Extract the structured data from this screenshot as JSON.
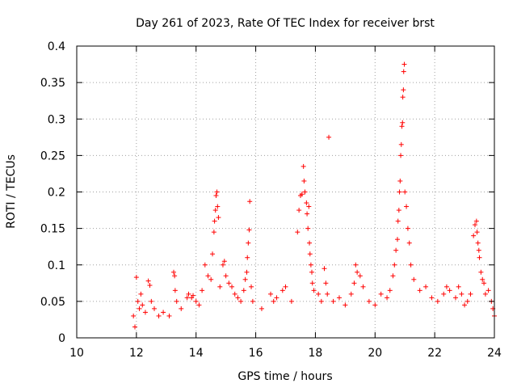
{
  "chart_data": {
    "type": "scatter",
    "title": "Day 261 of 2023, Rate Of TEC Index for receiver brst",
    "xlabel": "GPS time / hours",
    "ylabel": "ROTI / TECUs",
    "xlim": [
      10,
      24
    ],
    "ylim": [
      0,
      0.4
    ],
    "xticks": [
      10,
      12,
      14,
      16,
      18,
      20,
      22,
      24
    ],
    "xtick_labels": [
      "10",
      "12",
      "14",
      "16",
      "18",
      "20",
      "22",
      "24"
    ],
    "yticks": [
      0,
      0.05,
      0.1,
      0.15,
      0.2,
      0.25,
      0.3,
      0.35,
      0.4
    ],
    "ytick_labels": [
      "0",
      "0.05",
      "0.1",
      "0.15",
      "0.2",
      "0.25",
      "0.3",
      "0.35",
      "0.4"
    ],
    "grid": true,
    "marker": "+",
    "colors": {
      "points": "#ff0000",
      "grid": "#a0a0a0",
      "frame": "#000000"
    },
    "series": [
      {
        "points": [
          [
            11.9,
            0.03
          ],
          [
            11.95,
            0.015
          ],
          [
            12.0,
            0.083
          ],
          [
            12.05,
            0.05
          ],
          [
            12.1,
            0.04
          ],
          [
            12.15,
            0.06
          ],
          [
            12.2,
            0.045
          ],
          [
            12.3,
            0.035
          ],
          [
            12.4,
            0.078
          ],
          [
            12.45,
            0.072
          ],
          [
            12.5,
            0.05
          ],
          [
            12.6,
            0.04
          ],
          [
            12.75,
            0.03
          ],
          [
            12.9,
            0.035
          ],
          [
            13.1,
            0.03
          ],
          [
            13.25,
            0.09
          ],
          [
            13.28,
            0.085
          ],
          [
            13.3,
            0.065
          ],
          [
            13.35,
            0.05
          ],
          [
            13.5,
            0.04
          ],
          [
            13.7,
            0.055
          ],
          [
            13.75,
            0.06
          ],
          [
            13.85,
            0.055
          ],
          [
            13.9,
            0.058
          ],
          [
            14.0,
            0.05
          ],
          [
            14.1,
            0.045
          ],
          [
            14.2,
            0.065
          ],
          [
            14.3,
            0.1
          ],
          [
            14.4,
            0.085
          ],
          [
            14.5,
            0.08
          ],
          [
            14.55,
            0.115
          ],
          [
            14.6,
            0.145
          ],
          [
            14.62,
            0.16
          ],
          [
            14.65,
            0.175
          ],
          [
            14.67,
            0.195
          ],
          [
            14.7,
            0.2
          ],
          [
            14.72,
            0.18
          ],
          [
            14.75,
            0.165
          ],
          [
            14.8,
            0.07
          ],
          [
            14.9,
            0.1
          ],
          [
            14.95,
            0.105
          ],
          [
            15.0,
            0.085
          ],
          [
            15.1,
            0.075
          ],
          [
            15.2,
            0.07
          ],
          [
            15.3,
            0.06
          ],
          [
            15.4,
            0.055
          ],
          [
            15.5,
            0.05
          ],
          [
            15.6,
            0.065
          ],
          [
            15.65,
            0.08
          ],
          [
            15.7,
            0.09
          ],
          [
            15.72,
            0.11
          ],
          [
            15.75,
            0.13
          ],
          [
            15.78,
            0.148
          ],
          [
            15.8,
            0.187
          ],
          [
            15.85,
            0.07
          ],
          [
            15.9,
            0.05
          ],
          [
            16.2,
            0.04
          ],
          [
            16.5,
            0.06
          ],
          [
            16.6,
            0.05
          ],
          [
            16.7,
            0.055
          ],
          [
            16.9,
            0.065
          ],
          [
            17.0,
            0.07
          ],
          [
            17.2,
            0.05
          ],
          [
            17.4,
            0.145
          ],
          [
            17.45,
            0.175
          ],
          [
            17.5,
            0.195
          ],
          [
            17.55,
            0.197
          ],
          [
            17.6,
            0.235
          ],
          [
            17.62,
            0.215
          ],
          [
            17.65,
            0.2
          ],
          [
            17.7,
            0.185
          ],
          [
            17.72,
            0.17
          ],
          [
            17.75,
            0.15
          ],
          [
            17.78,
            0.18
          ],
          [
            17.8,
            0.13
          ],
          [
            17.82,
            0.115
          ],
          [
            17.85,
            0.1
          ],
          [
            17.88,
            0.09
          ],
          [
            17.9,
            0.075
          ],
          [
            17.95,
            0.065
          ],
          [
            18.1,
            0.06
          ],
          [
            18.2,
            0.05
          ],
          [
            18.3,
            0.095
          ],
          [
            18.35,
            0.075
          ],
          [
            18.4,
            0.06
          ],
          [
            18.45,
            0.275
          ],
          [
            18.6,
            0.05
          ],
          [
            18.8,
            0.055
          ],
          [
            19.0,
            0.045
          ],
          [
            19.2,
            0.06
          ],
          [
            19.3,
            0.075
          ],
          [
            19.35,
            0.1
          ],
          [
            19.4,
            0.09
          ],
          [
            19.5,
            0.085
          ],
          [
            19.6,
            0.07
          ],
          [
            19.8,
            0.05
          ],
          [
            20.0,
            0.045
          ],
          [
            20.2,
            0.06
          ],
          [
            20.4,
            0.055
          ],
          [
            20.5,
            0.065
          ],
          [
            20.6,
            0.085
          ],
          [
            20.65,
            0.1
          ],
          [
            20.7,
            0.12
          ],
          [
            20.75,
            0.135
          ],
          [
            20.77,
            0.16
          ],
          [
            20.8,
            0.175
          ],
          [
            20.82,
            0.2
          ],
          [
            20.84,
            0.215
          ],
          [
            20.86,
            0.25
          ],
          [
            20.88,
            0.265
          ],
          [
            20.9,
            0.29
          ],
          [
            20.92,
            0.295
          ],
          [
            20.93,
            0.33
          ],
          [
            20.95,
            0.34
          ],
          [
            20.96,
            0.365
          ],
          [
            20.98,
            0.375
          ],
          [
            21.0,
            0.2
          ],
          [
            21.05,
            0.18
          ],
          [
            21.1,
            0.15
          ],
          [
            21.15,
            0.13
          ],
          [
            21.2,
            0.1
          ],
          [
            21.3,
            0.08
          ],
          [
            21.5,
            0.065
          ],
          [
            21.7,
            0.07
          ],
          [
            21.9,
            0.055
          ],
          [
            22.1,
            0.05
          ],
          [
            22.3,
            0.06
          ],
          [
            22.4,
            0.07
          ],
          [
            22.5,
            0.065
          ],
          [
            22.7,
            0.055
          ],
          [
            22.8,
            0.07
          ],
          [
            22.9,
            0.06
          ],
          [
            23.0,
            0.045
          ],
          [
            23.1,
            0.05
          ],
          [
            23.2,
            0.06
          ],
          [
            23.3,
            0.14
          ],
          [
            23.35,
            0.155
          ],
          [
            23.4,
            0.16
          ],
          [
            23.42,
            0.145
          ],
          [
            23.45,
            0.13
          ],
          [
            23.48,
            0.12
          ],
          [
            23.5,
            0.11
          ],
          [
            23.55,
            0.09
          ],
          [
            23.6,
            0.08
          ],
          [
            23.65,
            0.075
          ],
          [
            23.7,
            0.06
          ],
          [
            23.8,
            0.065
          ],
          [
            23.9,
            0.05
          ],
          [
            23.95,
            0.04
          ],
          [
            24.0,
            0.03
          ]
        ]
      }
    ]
  }
}
